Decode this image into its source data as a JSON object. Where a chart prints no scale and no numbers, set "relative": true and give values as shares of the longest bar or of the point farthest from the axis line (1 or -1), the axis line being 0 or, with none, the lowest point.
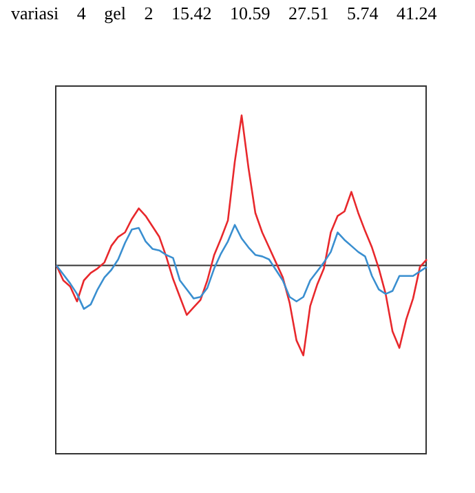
{
  "chart_data": {
    "type": "line",
    "relative": true,
    "legend": false,
    "grid": false,
    "marker": "none",
    "line_style": "solid",
    "annotations": [
      "variasi 4 gel 2 15.42 10.59 27.51 5.74 41.24"
    ],
    "categories": [
      null,
      null,
      null,
      null,
      null,
      null,
      null,
      null,
      null,
      null,
      null,
      null,
      null,
      null,
      null,
      null,
      null,
      null,
      null,
      null,
      null,
      null,
      null,
      null,
      null,
      null,
      null,
      null,
      null,
      null,
      null,
      null,
      null,
      null,
      null,
      null,
      null,
      null,
      null,
      null,
      null,
      null,
      null,
      null,
      null,
      null,
      null,
      null,
      null,
      null,
      null,
      null,
      null,
      null,
      null
    ],
    "series": [
      {
        "color": "#e8282c",
        "values": [
          0,
          -0.1,
          -0.14,
          -0.24,
          -0.1,
          -0.05,
          -0.02,
          0.02,
          0.13,
          0.19,
          0.22,
          0.31,
          0.38,
          0.33,
          0.26,
          0.19,
          0.06,
          -0.09,
          -0.21,
          -0.33,
          -0.28,
          -0.23,
          -0.1,
          0.07,
          0.18,
          0.3,
          0.69,
          1,
          0.65,
          0.35,
          0.22,
          0.12,
          0.02,
          -0.08,
          -0.25,
          -0.5,
          -0.6,
          -0.27,
          -0.13,
          -0.02,
          0.22,
          0.33,
          0.36,
          0.49,
          0.35,
          0.23,
          0.12,
          -0.02,
          -0.19,
          -0.44,
          -0.55,
          -0.36,
          -0.22,
          -0.01,
          0.04
        ]
      },
      {
        "color": "#3a8fd0",
        "values": [
          0,
          -0.06,
          -0.12,
          -0.19,
          -0.29,
          -0.26,
          -0.16,
          -0.08,
          -0.03,
          0.04,
          0.15,
          0.24,
          0.25,
          0.16,
          0.11,
          0.1,
          0.07,
          0.05,
          -0.1,
          -0.16,
          -0.22,
          -0.21,
          -0.15,
          -0.02,
          0.08,
          0.16,
          0.27,
          0.18,
          0.12,
          0.07,
          0.06,
          0.04,
          -0.03,
          -0.1,
          -0.21,
          -0.24,
          -0.21,
          -0.1,
          -0.04,
          0.02,
          0.09,
          0.22,
          0.17,
          0.13,
          0.09,
          0.06,
          -0.07,
          -0.16,
          -0.19,
          -0.17,
          -0.07,
          -0.07,
          -0.07,
          -0.04,
          -0.01
        ]
      }
    ]
  }
}
